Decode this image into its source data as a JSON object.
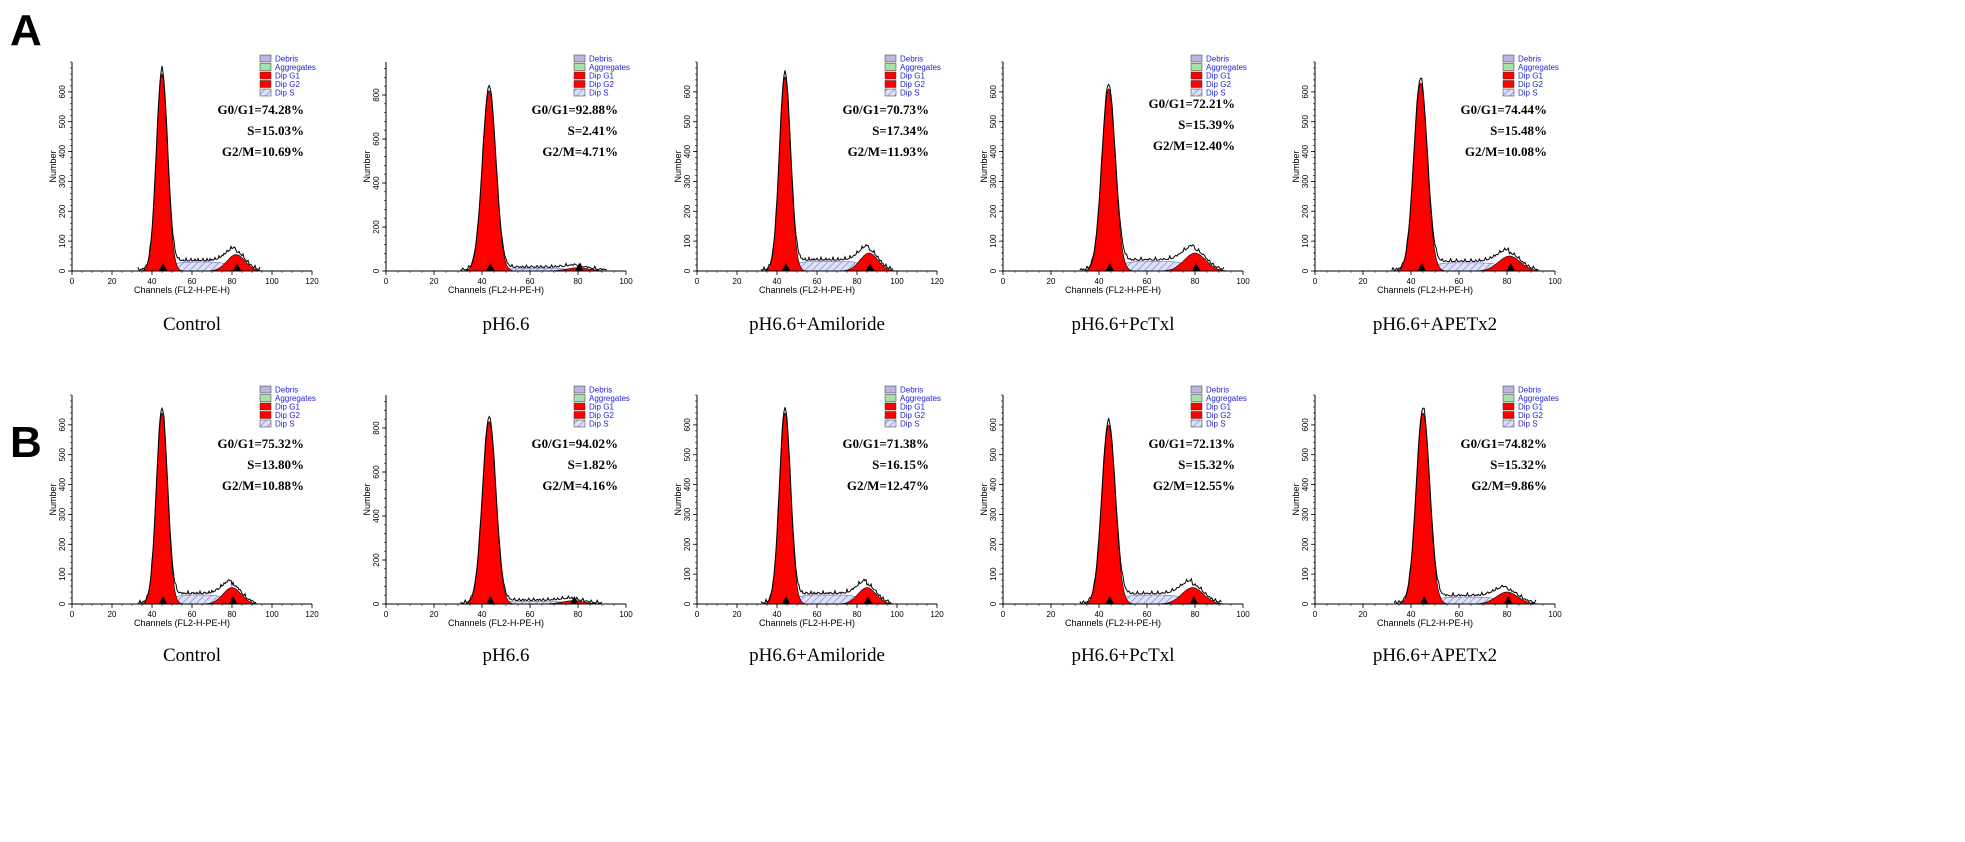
{
  "figure": {
    "panel_labels": [
      "A",
      "B"
    ],
    "legend": [
      "Debris",
      "Aggregates",
      "Dip G1",
      "Dip G2",
      "Dip S"
    ],
    "legend_colors": [
      "#b8b8e0",
      "#a8e0a8",
      "#ff0000",
      "#ff0000",
      "#ffffff"
    ],
    "fill_color": "#ff0000",
    "s_phase_color": "#9aa0e0",
    "xlabel": "Channels (FL2-H-PE-H)",
    "ylabel": "Number"
  },
  "chart_data": [
    {
      "type": "area",
      "row": "A",
      "caption": "Control",
      "xlim": [
        0,
        120
      ],
      "xticks": [
        0,
        20,
        40,
        60,
        80,
        100,
        120
      ],
      "ylim": [
        0,
        700
      ],
      "yticks": [
        0,
        100,
        200,
        300,
        400,
        500,
        600
      ],
      "g1_peak_x": 45,
      "g1_peak_y": 660,
      "g2_peak_x": 82,
      "g2_peak_y": 55,
      "stats": [
        "G0/G1=74.28%",
        "S=15.03%",
        "G2/M=10.69%"
      ]
    },
    {
      "type": "area",
      "row": "A",
      "caption": "pH6.6",
      "xlim": [
        0,
        100
      ],
      "xticks": [
        0,
        20,
        40,
        60,
        80,
        100
      ],
      "ylim": [
        0,
        950
      ],
      "yticks": [
        0,
        200,
        400,
        600,
        800
      ],
      "g1_peak_x": 43,
      "g1_peak_y": 820,
      "g2_peak_x": 80,
      "g2_peak_y": 15,
      "stats": [
        "G0/G1=92.88%",
        "S=2.41%",
        "G2/M=4.71%"
      ]
    },
    {
      "type": "area",
      "row": "A",
      "caption": "pH6.6+Amiloride",
      "xlim": [
        0,
        120
      ],
      "xticks": [
        0,
        20,
        40,
        60,
        80,
        100,
        120
      ],
      "ylim": [
        0,
        700
      ],
      "yticks": [
        0,
        100,
        200,
        300,
        400,
        500,
        600
      ],
      "g1_peak_x": 44,
      "g1_peak_y": 650,
      "g2_peak_x": 86,
      "g2_peak_y": 60,
      "stats": [
        "G0/G1=70.73%",
        "S=17.34%",
        "G2/M=11.93%"
      ]
    },
    {
      "type": "area",
      "row": "A",
      "caption": "pH6.6+PcTxl",
      "xlim": [
        0,
        100
      ],
      "xticks": [
        0,
        20,
        40,
        60,
        80,
        100
      ],
      "ylim": [
        0,
        700
      ],
      "yticks": [
        0,
        100,
        200,
        300,
        400,
        500,
        600
      ],
      "g1_peak_x": 44,
      "g1_peak_y": 610,
      "g2_peak_x": 80,
      "g2_peak_y": 60,
      "stats": [
        "G0/G1=72.21%",
        "S=15.39%",
        "G2/M=12.40%"
      ]
    },
    {
      "type": "area",
      "row": "A",
      "caption": "pH6.6+APETx2",
      "xlim": [
        0,
        100
      ],
      "xticks": [
        0,
        20,
        40,
        60,
        80,
        100
      ],
      "ylim": [
        0,
        700
      ],
      "yticks": [
        0,
        100,
        200,
        300,
        400,
        500,
        600
      ],
      "g1_peak_x": 44,
      "g1_peak_y": 630,
      "g2_peak_x": 81,
      "g2_peak_y": 50,
      "stats": [
        "G0/G1=74.44%",
        "S=15.48%",
        "G2/M=10.08%"
      ]
    },
    {
      "type": "area",
      "row": "B",
      "caption": "Control",
      "xlim": [
        0,
        120
      ],
      "xticks": [
        0,
        20,
        40,
        60,
        80,
        100,
        120
      ],
      "ylim": [
        0,
        700
      ],
      "yticks": [
        0,
        100,
        200,
        300,
        400,
        500,
        600
      ],
      "g1_peak_x": 45,
      "g1_peak_y": 640,
      "g2_peak_x": 80,
      "g2_peak_y": 55,
      "stats": [
        "G0/G1=75.32%",
        "S=13.80%",
        "G2/M=10.88%"
      ]
    },
    {
      "type": "area",
      "row": "B",
      "caption": "pH6.6",
      "xlim": [
        0,
        100
      ],
      "xticks": [
        0,
        20,
        40,
        60,
        80,
        100
      ],
      "ylim": [
        0,
        950
      ],
      "yticks": [
        0,
        200,
        400,
        600,
        800
      ],
      "g1_peak_x": 43,
      "g1_peak_y": 830,
      "g2_peak_x": 78,
      "g2_peak_y": 15,
      "stats": [
        "G0/G1=94.02%",
        "S=1.82%",
        "G2/M=4.16%"
      ]
    },
    {
      "type": "area",
      "row": "B",
      "caption": "pH6.6+Amiloride",
      "xlim": [
        0,
        120
      ],
      "xticks": [
        0,
        20,
        40,
        60,
        80,
        100,
        120
      ],
      "ylim": [
        0,
        700
      ],
      "yticks": [
        0,
        100,
        200,
        300,
        400,
        500,
        600
      ],
      "g1_peak_x": 44,
      "g1_peak_y": 640,
      "g2_peak_x": 85,
      "g2_peak_y": 55,
      "stats": [
        "G0/G1=71.38%",
        "S=16.15%",
        "G2/M=12.47%"
      ]
    },
    {
      "type": "area",
      "row": "B",
      "caption": "pH6.6+PcTxl",
      "xlim": [
        0,
        100
      ],
      "xticks": [
        0,
        20,
        40,
        60,
        80,
        100
      ],
      "ylim": [
        0,
        700
      ],
      "yticks": [
        0,
        100,
        200,
        300,
        400,
        500,
        600
      ],
      "g1_peak_x": 44,
      "g1_peak_y": 600,
      "g2_peak_x": 79,
      "g2_peak_y": 55,
      "stats": [
        "G0/G1=72.13%",
        "S=15.32%",
        "G2/M=12.55%"
      ]
    },
    {
      "type": "area",
      "row": "B",
      "caption": "pH6.6+APETx2",
      "xlim": [
        0,
        100
      ],
      "xticks": [
        0,
        20,
        40,
        60,
        80,
        100
      ],
      "ylim": [
        0,
        700
      ],
      "yticks": [
        0,
        100,
        200,
        300,
        400,
        500,
        600
      ],
      "g1_peak_x": 45,
      "g1_peak_y": 640,
      "g2_peak_x": 80,
      "g2_peak_y": 40,
      "stats": [
        "G0/G1=74.82%",
        "S=15.32%",
        "G2/M=9.86%"
      ]
    }
  ]
}
